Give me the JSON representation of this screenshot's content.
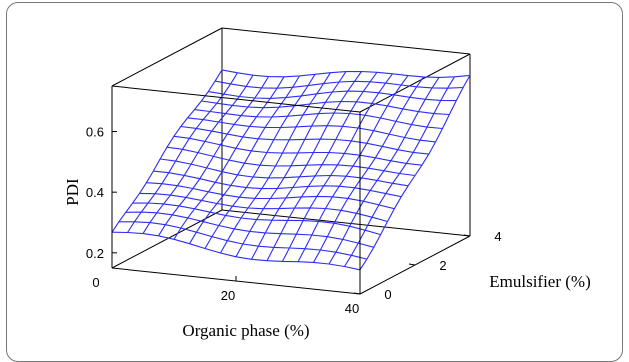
{
  "chart_data": {
    "type": "surface",
    "zlabel": "PDI",
    "xlabel": "Organic phase (%)",
    "ylabel": "Emulsifier (%)",
    "z_ticks": [
      "0.2",
      "0.4",
      "0.6"
    ],
    "x_ticks": [
      "0",
      "20",
      "40"
    ],
    "y_ticks": [
      "0",
      "2",
      "4"
    ],
    "xlim": [
      0,
      40
    ],
    "ylim": [
      0,
      4
    ],
    "zlim": [
      0.15,
      0.75
    ],
    "grid_size": [
      16,
      16
    ],
    "surface_model": {
      "description": "PDI approx",
      "corners": {
        "x0_y0": 0.26,
        "x40_y0": 0.23,
        "x0_y4": 0.61,
        "x40_y4": 0.68
      }
    },
    "color": "#2d2df5"
  }
}
